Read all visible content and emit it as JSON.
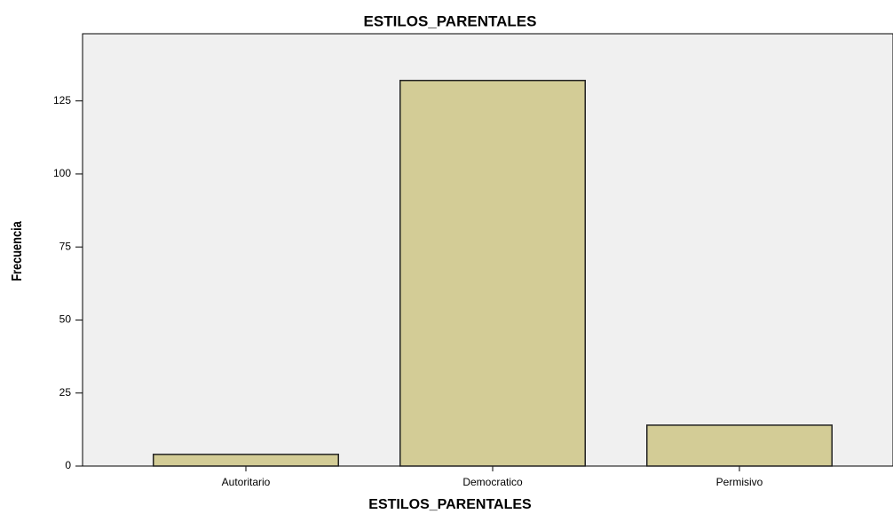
{
  "chart_data": {
    "type": "bar",
    "title": "ESTILOS_PARENTALES",
    "x_label": "ESTILOS_PARENTALES",
    "y_label": "Frecuencia",
    "categories": [
      "Autoritario",
      "Democratico",
      "Permisivo"
    ],
    "values": [
      4,
      132,
      14
    ],
    "color": "#d3cc96",
    "ylim": [
      0,
      148
    ],
    "yticks": [
      0,
      25,
      50,
      75,
      100,
      125
    ],
    "grid": false
  }
}
